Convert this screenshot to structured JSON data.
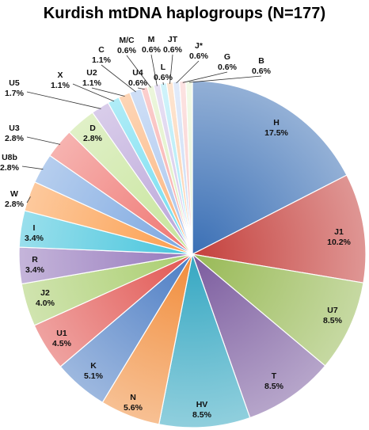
{
  "chart_data": {
    "type": "pie",
    "title": "Kurdish mtDNA haplogroups (N=177)",
    "slices": [
      {
        "label": "H",
        "value": 17.5,
        "value_label": "17.5%",
        "color": "#3a6fb5"
      },
      {
        "label": "J1",
        "value": 10.2,
        "value_label": "10.2%",
        "color": "#c4403c"
      },
      {
        "label": "U7",
        "value": 8.5,
        "value_label": "8.5%",
        "color": "#98b955"
      },
      {
        "label": "T",
        "value": 8.5,
        "value_label": "8.5%",
        "color": "#7b5b9e"
      },
      {
        "label": "HV",
        "value": 8.5,
        "value_label": "8.5%",
        "color": "#35a7c2"
      },
      {
        "label": "N",
        "value": 5.6,
        "value_label": "5.6%",
        "color": "#f18c3a"
      },
      {
        "label": "K",
        "value": 5.1,
        "value_label": "5.1%",
        "color": "#4d7dc4"
      },
      {
        "label": "U1",
        "value": 4.5,
        "value_label": "4.5%",
        "color": "#e15652"
      },
      {
        "label": "J2",
        "value": 4.0,
        "value_label": "4.0%",
        "color": "#a9cd6e"
      },
      {
        "label": "R",
        "value": 3.4,
        "value_label": "3.4%",
        "color": "#9578bc"
      },
      {
        "label": "I",
        "value": 3.4,
        "value_label": "3.4%",
        "color": "#45c4dc"
      },
      {
        "label": "W",
        "value": 2.8,
        "value_label": "2.8%",
        "color": "#fb9d4c"
      },
      {
        "label": "U8b",
        "value": 2.8,
        "value_label": "2.8%",
        "color": "#7aa6e0"
      },
      {
        "label": "U3",
        "value": 2.8,
        "value_label": "2.8%",
        "color": "#ef7470"
      },
      {
        "label": "D",
        "value": 2.8,
        "value_label": "2.8%",
        "color": "#c6e49a"
      },
      {
        "label": "U5",
        "value": 1.7,
        "value_label": "1.7%",
        "color": "#b9a4d8"
      },
      {
        "label": "X",
        "value": 1.1,
        "value_label": "1.1%",
        "color": "#6fdcf0"
      },
      {
        "label": "U2",
        "value": 1.1,
        "value_label": "1.1%",
        "color": "#fbb27a"
      },
      {
        "label": "C",
        "value": 1.1,
        "value_label": "1.1%",
        "color": "#a7c4ee"
      },
      {
        "label": "U4",
        "value": 0.6,
        "value_label": "0.6%",
        "color": "#f7a7a5"
      },
      {
        "label": "M/C",
        "value": 0.6,
        "value_label": "0.6%",
        "color": "#dcefbf"
      },
      {
        "label": "M",
        "value": 0.6,
        "value_label": "0.6%",
        "color": "#d4c6ea"
      },
      {
        "label": "L",
        "value": 0.6,
        "value_label": "0.6%",
        "color": "#a9e9f6"
      },
      {
        "label": "JT",
        "value": 0.6,
        "value_label": "0.6%",
        "color": "#fcd0ac"
      },
      {
        "label": "J*",
        "value": 0.6,
        "value_label": "0.6%",
        "color": "#c8daf5"
      },
      {
        "label": "G",
        "value": 0.6,
        "value_label": "0.6%",
        "color": "#f9cccb"
      },
      {
        "label": "B",
        "value": 0.6,
        "value_label": "0.6%",
        "color": "#e8f5d6"
      }
    ]
  }
}
